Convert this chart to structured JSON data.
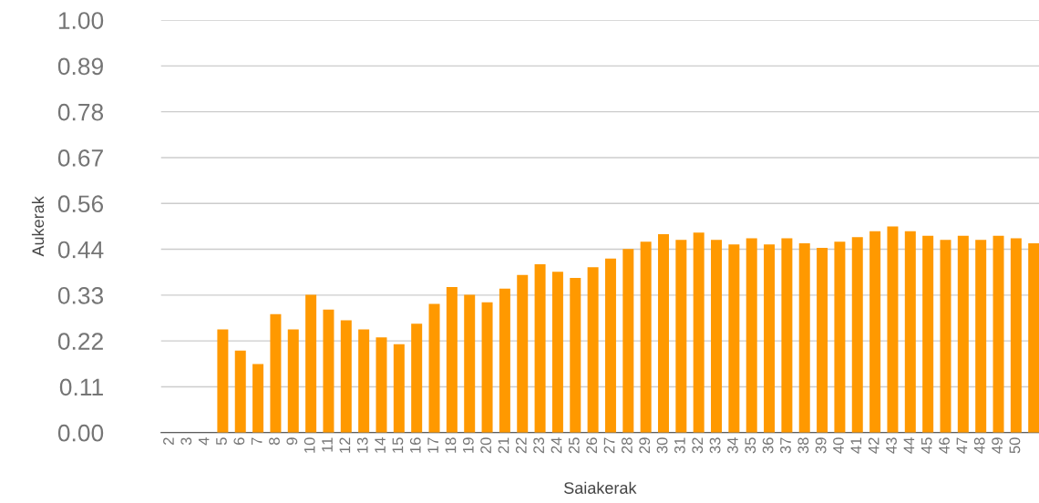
{
  "chart_data": {
    "type": "bar",
    "xlabel": "Saiakerak",
    "ylabel": "Aukerak",
    "categories": [
      "2",
      "3",
      "4",
      "5",
      "6",
      "7",
      "8",
      "9",
      "10",
      "11",
      "12",
      "13",
      "14",
      "15",
      "16",
      "17",
      "18",
      "19",
      "20",
      "21",
      "22",
      "23",
      "24",
      "25",
      "26",
      "27",
      "28",
      "29",
      "30",
      "31",
      "32",
      "33",
      "34",
      "35",
      "36",
      "37",
      "38",
      "39",
      "40",
      "41",
      "42",
      "43",
      "44",
      "45",
      "46",
      "47",
      "48",
      "49",
      "50",
      null
    ],
    "values": [
      null,
      null,
      null,
      0.25,
      0.199,
      0.166,
      0.287,
      0.25,
      0.334,
      0.298,
      0.272,
      0.25,
      0.231,
      0.214,
      0.264,
      0.312,
      0.353,
      0.334,
      0.316,
      0.349,
      0.382,
      0.408,
      0.39,
      0.375,
      0.401,
      0.422,
      0.445,
      0.463,
      0.481,
      0.467,
      0.485,
      0.467,
      0.456,
      0.471,
      0.456,
      0.471,
      0.459,
      0.448,
      0.463,
      0.474,
      0.488,
      0.5,
      0.488,
      0.477,
      0.467,
      0.477,
      0.467,
      0.477,
      0.471,
      0.459
    ],
    "color": "#ff9900",
    "ylim": [
      0,
      1
    ],
    "yticks": [
      {
        "value": 0,
        "label": "0.00"
      },
      {
        "value": 0.1111,
        "label": "0.11"
      },
      {
        "value": 0.2222,
        "label": "0.22"
      },
      {
        "value": 0.3333,
        "label": "0.33"
      },
      {
        "value": 0.4444,
        "label": "0.44"
      },
      {
        "value": 0.5556,
        "label": "0.56"
      },
      {
        "value": 0.6667,
        "label": "0.67"
      },
      {
        "value": 0.7778,
        "label": "0.78"
      },
      {
        "value": 0.8889,
        "label": "0.89"
      },
      {
        "value": 1,
        "label": "1.00"
      }
    ],
    "grid": "y"
  }
}
